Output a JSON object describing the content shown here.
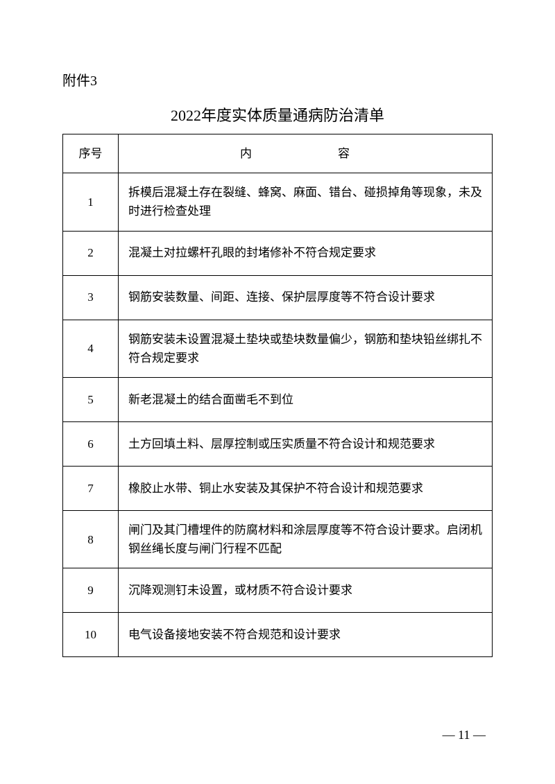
{
  "attachment_label": "附件3",
  "title": "2022年度实体质量通病防治清单",
  "columns": {
    "num": "序号",
    "content": "内　　容"
  },
  "rows": [
    {
      "num": "1",
      "content": "拆模后混凝土存在裂缝、蜂窝、麻面、错台、碰损掉角等现象，未及时进行检查处理",
      "tall": true
    },
    {
      "num": "2",
      "content": "混凝土对拉螺杆孔眼的封堵修补不符合规定要求",
      "tall": false
    },
    {
      "num": "3",
      "content": "钢筋安装数量、间距、连接、保护层厚度等不符合设计要求",
      "tall": false
    },
    {
      "num": "4",
      "content": "钢筋安装未设置混凝土垫块或垫块数量偏少，钢筋和垫块铅丝绑扎不符合规定要求",
      "tall": true
    },
    {
      "num": "5",
      "content": "新老混凝土的结合面凿毛不到位",
      "tall": false
    },
    {
      "num": "6",
      "content": "土方回填土料、层厚控制或压实质量不符合设计和规范要求",
      "tall": false
    },
    {
      "num": "7",
      "content": "橡胶止水带、铜止水安装及其保护不符合设计和规范要求",
      "tall": false
    },
    {
      "num": "8",
      "content": "闸门及其门槽埋件的防腐材料和涂层厚度等不符合设计要求。启闭机钢丝绳长度与闸门行程不匹配",
      "tall": true
    },
    {
      "num": "9",
      "content": "沉降观测钉未设置，或材质不符合设计要求",
      "tall": false
    },
    {
      "num": "10",
      "content": "电气设备接地安装不符合规范和设计要求",
      "tall": false
    }
  ],
  "page_number": "— 11 —"
}
